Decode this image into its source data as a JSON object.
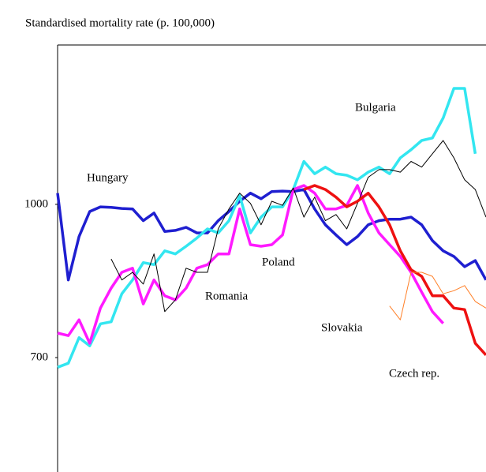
{
  "chart_data": {
    "type": "line",
    "title": "Standardised mortality rate (p. 100,000)",
    "x": [
      0,
      1,
      2,
      3,
      4,
      5,
      6,
      7,
      8,
      9,
      10,
      11,
      12,
      13,
      14,
      15,
      16,
      17,
      18,
      19,
      20,
      21,
      22,
      23,
      24,
      25,
      26,
      27,
      28,
      29,
      30,
      31,
      32,
      33,
      34,
      35,
      36,
      37,
      38,
      39,
      40
    ],
    "xlim": [
      0,
      40
    ],
    "ylim": [
      476,
      1312
    ],
    "yticks": [
      700,
      1000
    ],
    "grid": false,
    "series": [
      {
        "name": "Hungary",
        "color": "#1f1fd0",
        "width": 3.5,
        "values": [
          1022,
          852,
          937,
          986,
          995,
          994,
          992,
          991,
          968,
          983,
          947,
          949,
          955,
          944,
          944,
          968,
          986,
          1006,
          1022,
          1011,
          1025,
          1026,
          1025,
          1029,
          991,
          960,
          940,
          921,
          937,
          960,
          968,
          971,
          971,
          975,
          960,
          929,
          909,
          898,
          878,
          890,
          852
        ]
      },
      {
        "name": "Bulgaria",
        "color": "#33e6f0",
        "width": 3.5,
        "values": [
          681,
          689,
          739,
          723,
          766,
          770,
          825,
          852,
          886,
          882,
          909,
          903,
          918,
          934,
          952,
          944,
          968,
          1017,
          944,
          975,
          995,
          995,
          1029,
          1084,
          1060,
          1073,
          1060,
          1057,
          1048,
          1063,
          1073,
          1060,
          1091,
          1107,
          1125,
          1130,
          1169,
          1227,
          1227,
          1099,
          null
        ]
      },
      {
        "name": "Romania",
        "color": "#ff1aff",
        "width": 3.5,
        "values": [
          748,
          743,
          774,
          728,
          797,
          836,
          867,
          875,
          805,
          852,
          821,
          813,
          836,
          875,
          882,
          903,
          903,
          991,
          921,
          918,
          921,
          940,
          1029,
          1037,
          1022,
          991,
          991,
          998,
          1037,
          983,
          944,
          921,
          898,
          867,
          828,
          790,
          767,
          null,
          null,
          null,
          null
        ]
      },
      {
        "name": "Poland",
        "color": "#000000",
        "width": 1,
        "values": [
          null,
          null,
          null,
          null,
          null,
          893,
          852,
          867,
          844,
          903,
          790,
          813,
          875,
          867,
          867,
          952,
          991,
          1022,
          1002,
          960,
          1006,
          998,
          1032,
          975,
          1014,
          968,
          980,
          952,
          1002,
          1053,
          1068,
          1068,
          1063,
          1084,
          1073,
          1099,
          1125,
          1091,
          1048,
          1029,
          975
        ]
      },
      {
        "name": "Czech rep.",
        "color": "#ee1111",
        "width": 3.5,
        "values": [
          null,
          null,
          null,
          null,
          null,
          null,
          null,
          null,
          null,
          null,
          null,
          null,
          null,
          null,
          null,
          null,
          null,
          null,
          null,
          null,
          null,
          null,
          null,
          1029,
          1037,
          1029,
          1014,
          995,
          1006,
          1022,
          995,
          960,
          909,
          872,
          859,
          821,
          821,
          797,
          794,
          728,
          705
        ]
      },
      {
        "name": "Slovakia",
        "color": "#ff7f27",
        "width": 1,
        "values": [
          null,
          null,
          null,
          null,
          null,
          null,
          null,
          null,
          null,
          null,
          null,
          null,
          null,
          null,
          null,
          null,
          null,
          null,
          null,
          null,
          null,
          null,
          null,
          null,
          null,
          null,
          null,
          null,
          null,
          null,
          null,
          801,
          774,
          867,
          867,
          859,
          825,
          831,
          841,
          810,
          797
        ]
      }
    ]
  }
}
